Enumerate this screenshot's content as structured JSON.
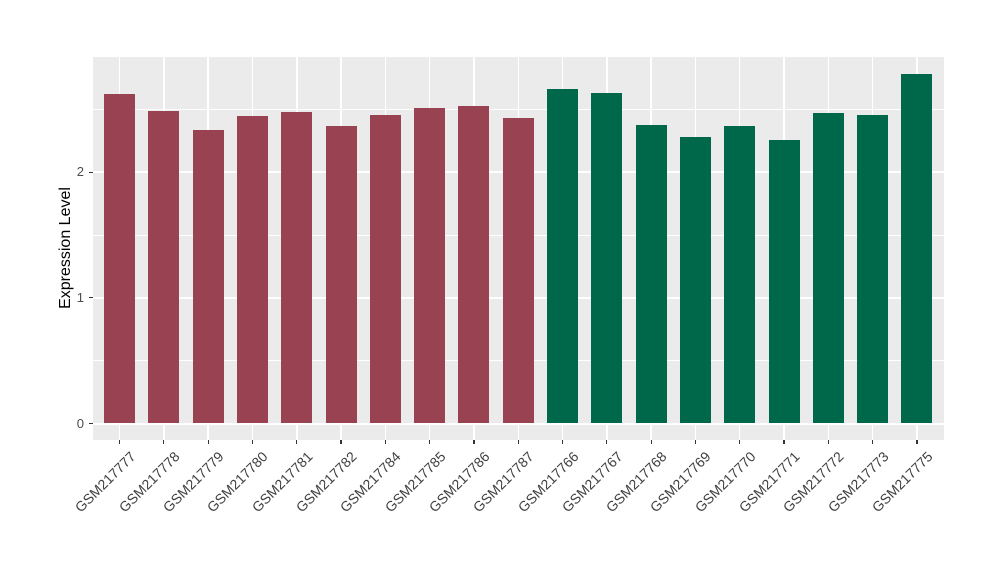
{
  "chart_data": {
    "type": "bar",
    "title": "",
    "xlabel": "",
    "ylabel": "Expression Level",
    "categories": [
      "GSM217777",
      "GSM217778",
      "GSM217779",
      "GSM217780",
      "GSM217781",
      "GSM217782",
      "GSM217784",
      "GSM217785",
      "GSM217786",
      "GSM217787",
      "GSM217766",
      "GSM217767",
      "GSM217768",
      "GSM217769",
      "GSM217770",
      "GSM217771",
      "GSM217772",
      "GSM217773",
      "GSM217775"
    ],
    "values": [
      2.62,
      2.49,
      2.34,
      2.45,
      2.48,
      2.37,
      2.46,
      2.51,
      2.53,
      2.43,
      2.66,
      2.63,
      2.38,
      2.28,
      2.37,
      2.26,
      2.47,
      2.46,
      2.78
    ],
    "bar_groups": [
      "red",
      "red",
      "red",
      "red",
      "red",
      "red",
      "red",
      "red",
      "red",
      "red",
      "green",
      "green",
      "green",
      "green",
      "green",
      "green",
      "green",
      "green",
      "green"
    ],
    "group_colors": {
      "red": "#994251",
      "green": "#00684A"
    },
    "yticks": [
      0,
      1,
      2
    ],
    "minor_gridlines": [
      0.5,
      1.5,
      2.5
    ],
    "ylim": [
      -0.14,
      2.92
    ],
    "legend_position": "none",
    "grid": "on",
    "panel_background": "#EBEBEB",
    "gridline_color": "#FFFFFF",
    "axis_text_color": "#4D4D4D"
  }
}
